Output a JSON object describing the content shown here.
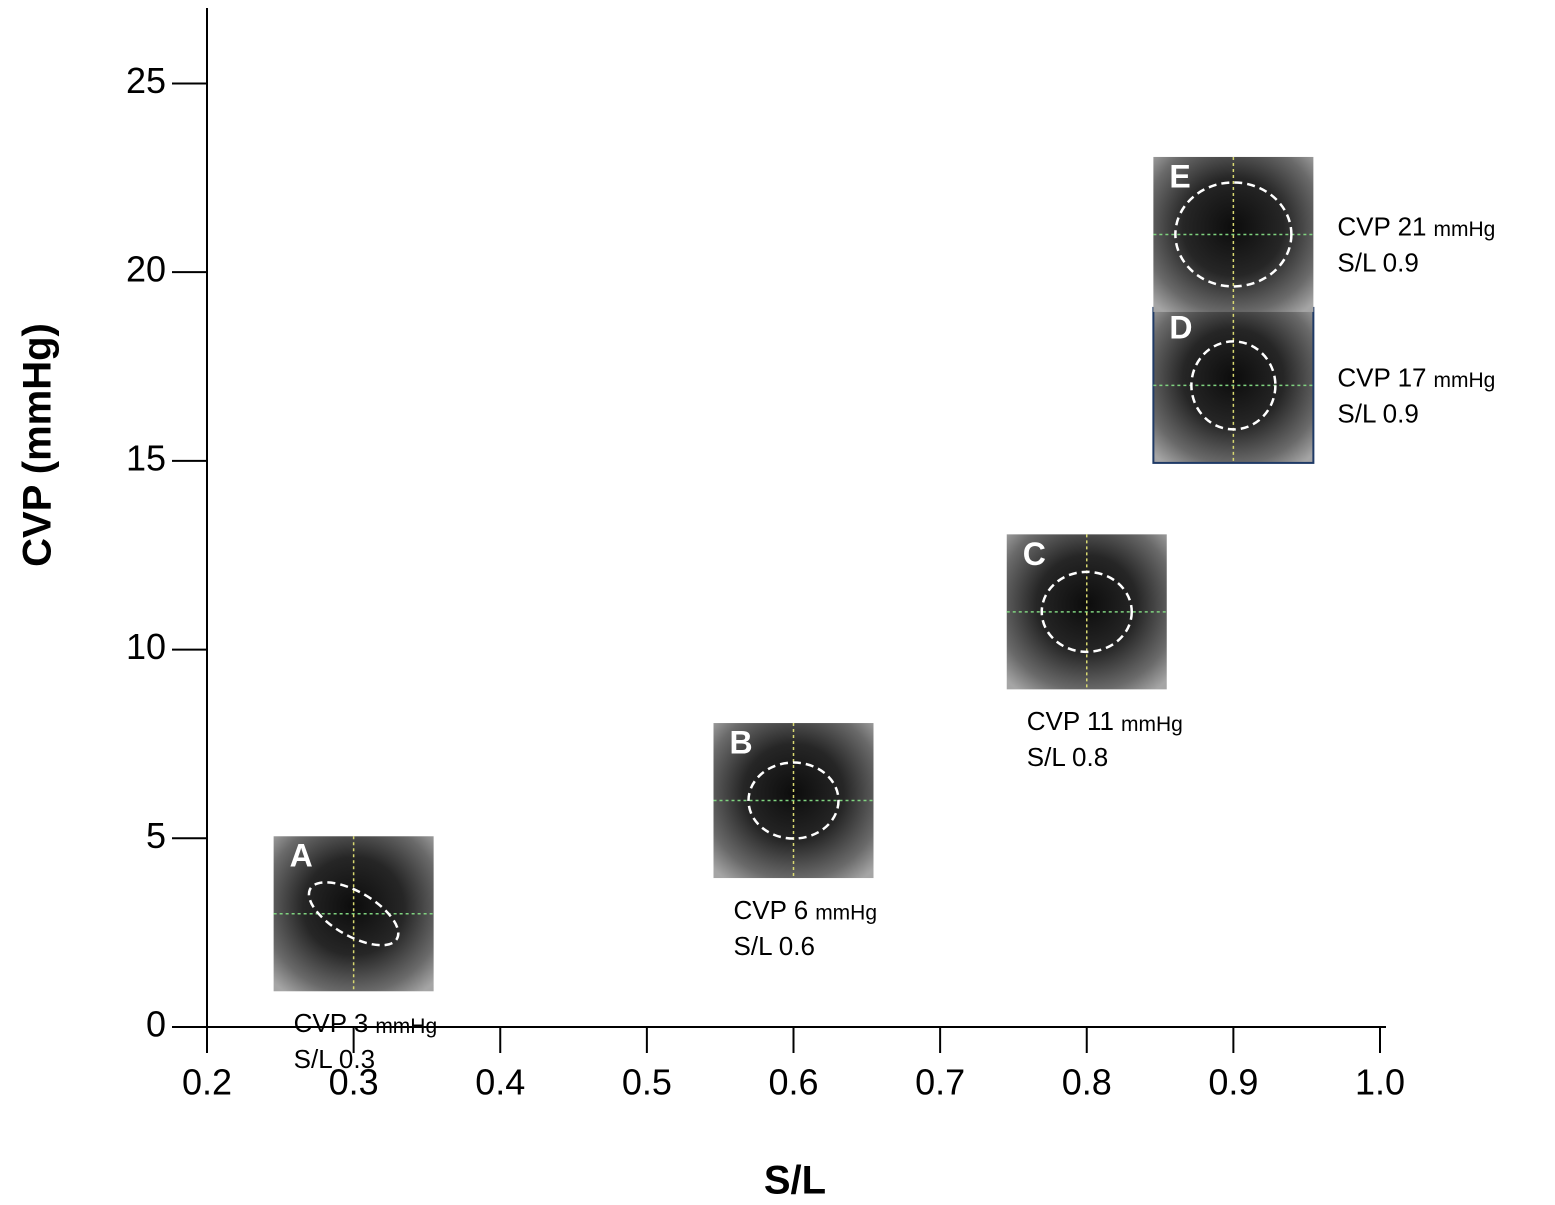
{
  "chart_data": {
    "type": "scatter",
    "x_label": "S/L",
    "y_label": "CVP (mmHg)",
    "xlim": [
      0.2,
      1.0
    ],
    "xticks": [
      0.2,
      0.3,
      0.4,
      0.5,
      0.6,
      0.7,
      0.8,
      0.9,
      {
        "value": 1.0,
        "label": "1.0"
      }
    ],
    "ylim": [
      0,
      27
    ],
    "yticks": [
      0,
      5,
      10,
      15,
      20,
      25
    ],
    "points": [
      {
        "letter": "A",
        "x": 0.3,
        "y": 3,
        "cvp_label": "CVP 3",
        "unit": "mmHg",
        "sl_label": "S/L 0.3"
      },
      {
        "letter": "B",
        "x": 0.6,
        "y": 6,
        "cvp_label": "CVP 6",
        "unit": "mmHg",
        "sl_label": "S/L 0.6"
      },
      {
        "letter": "C",
        "x": 0.8,
        "y": 11,
        "cvp_label": "CVP 11",
        "unit": "mmHg",
        "sl_label": "S/L 0.8"
      },
      {
        "letter": "D",
        "x": 0.9,
        "y": 17,
        "cvp_label": "CVP 17",
        "unit": "mmHg",
        "sl_label": "S/L 0.9"
      },
      {
        "letter": "E",
        "x": 0.9,
        "y": 21,
        "cvp_label": "CVP 21",
        "unit": "mmHg",
        "sl_label": "S/L 0.9"
      }
    ]
  }
}
